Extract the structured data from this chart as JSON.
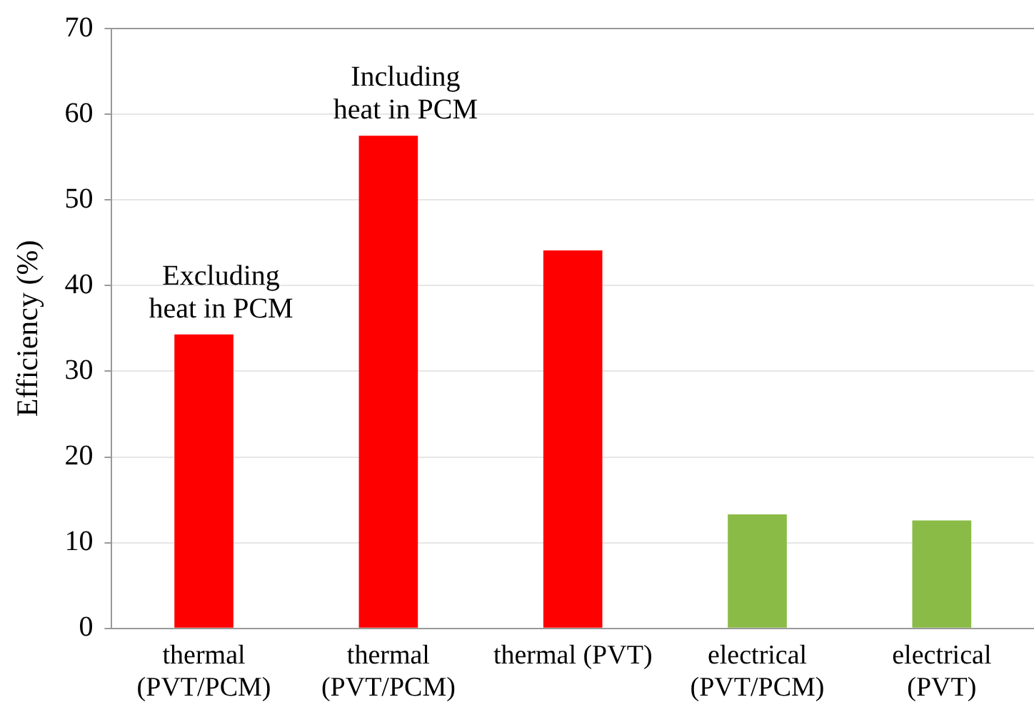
{
  "chart_data": {
    "type": "bar",
    "ylabel": "Efficiency (%)",
    "categories": [
      "thermal\n(PVT/PCM)",
      "thermal\n(PVT/PCM)",
      "thermal (PVT)",
      "electrical\n(PVT/PCM)",
      "electrical\n(PVT)"
    ],
    "values": [
      34.3,
      57.5,
      44.1,
      13.3,
      12.6
    ],
    "colors": [
      "#ff0000",
      "#ff0000",
      "#ff0000",
      "#8bbb47",
      "#8bbb47"
    ],
    "ylim": [
      0,
      70
    ],
    "yticks": [
      0,
      10,
      20,
      30,
      40,
      50,
      60,
      70
    ],
    "grid": "y",
    "legend": false,
    "annotations": [
      "Excluding\nheat in PCM",
      "Including\nheat in PCM"
    ]
  }
}
